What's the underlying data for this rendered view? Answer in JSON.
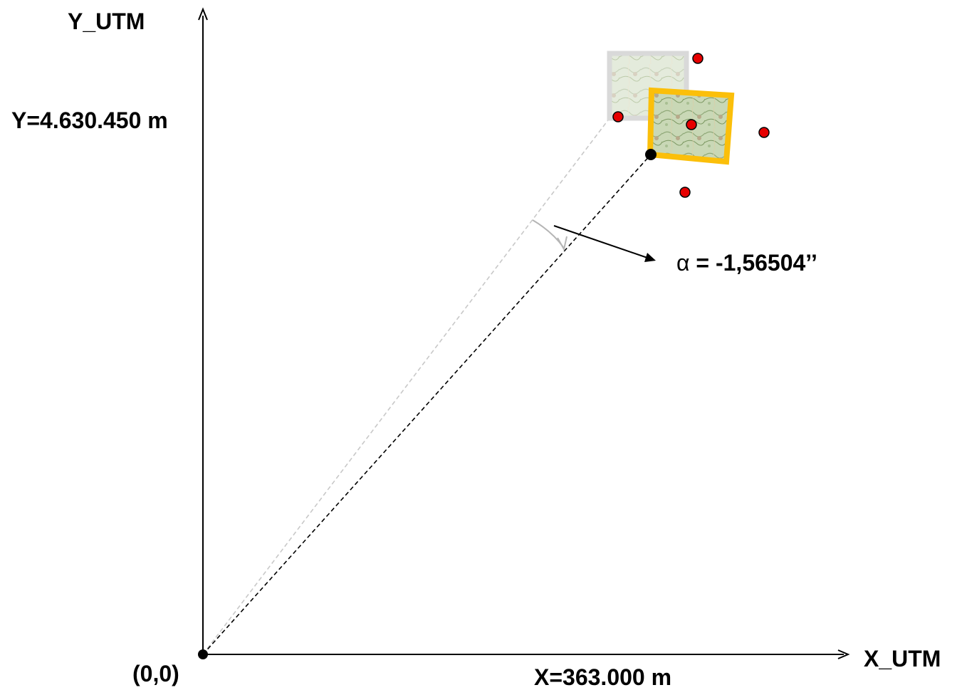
{
  "axes": {
    "y_label": "Y_UTM",
    "x_label": "X_UTM",
    "origin_label": "(0,0)",
    "y_value_label": "Y=4.630.450 m",
    "x_value_label": "X=363.000 m"
  },
  "rotation": {
    "symbol": "α",
    "value_text": " = -1,56504’’"
  },
  "colors": {
    "axis": "#000000",
    "control_point": "#e60000",
    "rotated_frame": "#fbbf0a",
    "original_frame": "#d9d9d9",
    "original_ray": "#c8c8c8",
    "rotated_ray": "#000000"
  }
}
